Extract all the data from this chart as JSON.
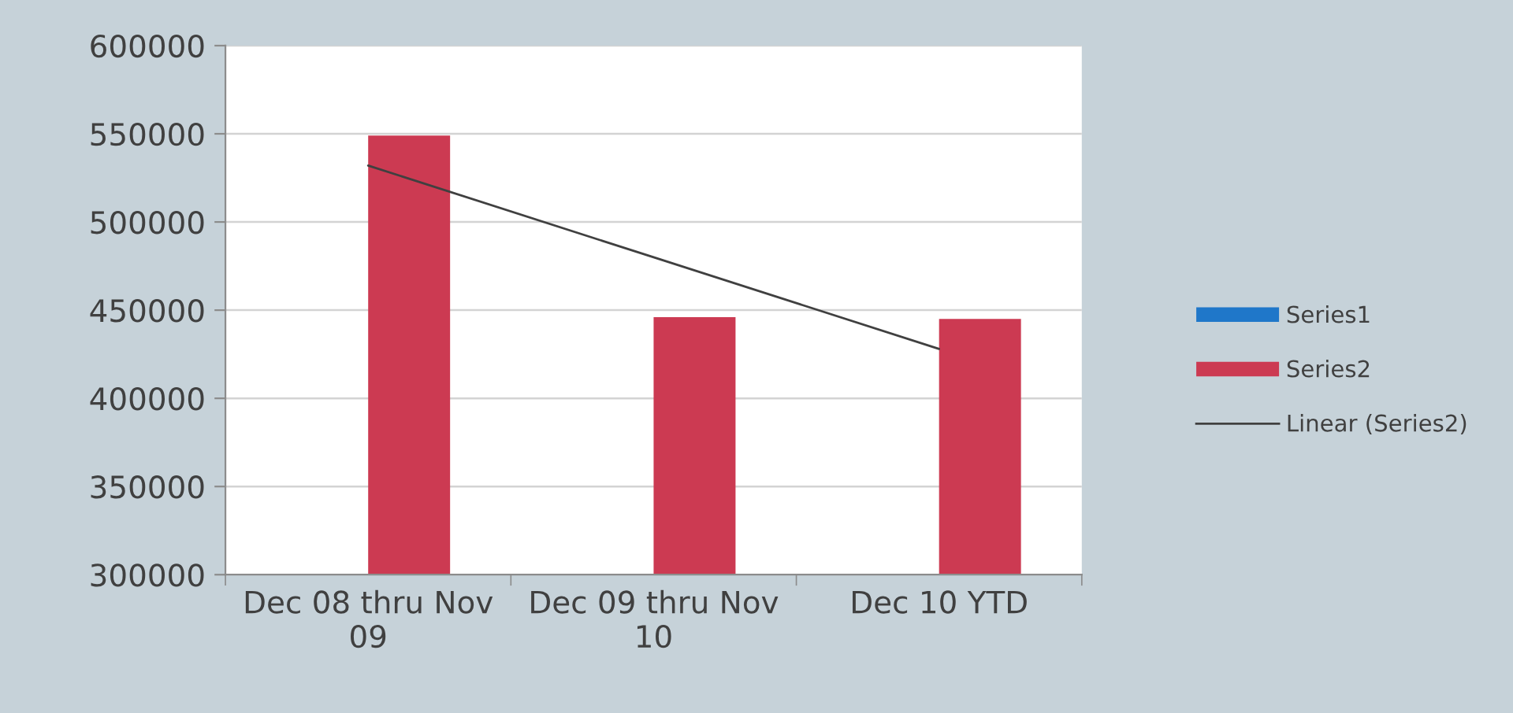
{
  "chart_data": {
    "type": "bar",
    "categories": [
      "Dec 08 thru Nov 09",
      "Dec 09 thru Nov 10",
      "Dec 10 YTD"
    ],
    "series": [
      {
        "name": "Series1",
        "color": "#1f77c9",
        "values": [
          null,
          null,
          null
        ]
      },
      {
        "name": "Series2",
        "color": "#cc3a52",
        "values": [
          549000,
          446000,
          445000
        ]
      },
      {
        "name": "Linear (Series2)",
        "type": "line",
        "color": "#404040",
        "values": [
          532000,
          480000,
          428000
        ]
      }
    ],
    "ylim": [
      300000,
      600000
    ],
    "yticks": [
      300000,
      350000,
      400000,
      450000,
      500000,
      550000,
      600000
    ],
    "grid": "y",
    "legend": "right"
  }
}
